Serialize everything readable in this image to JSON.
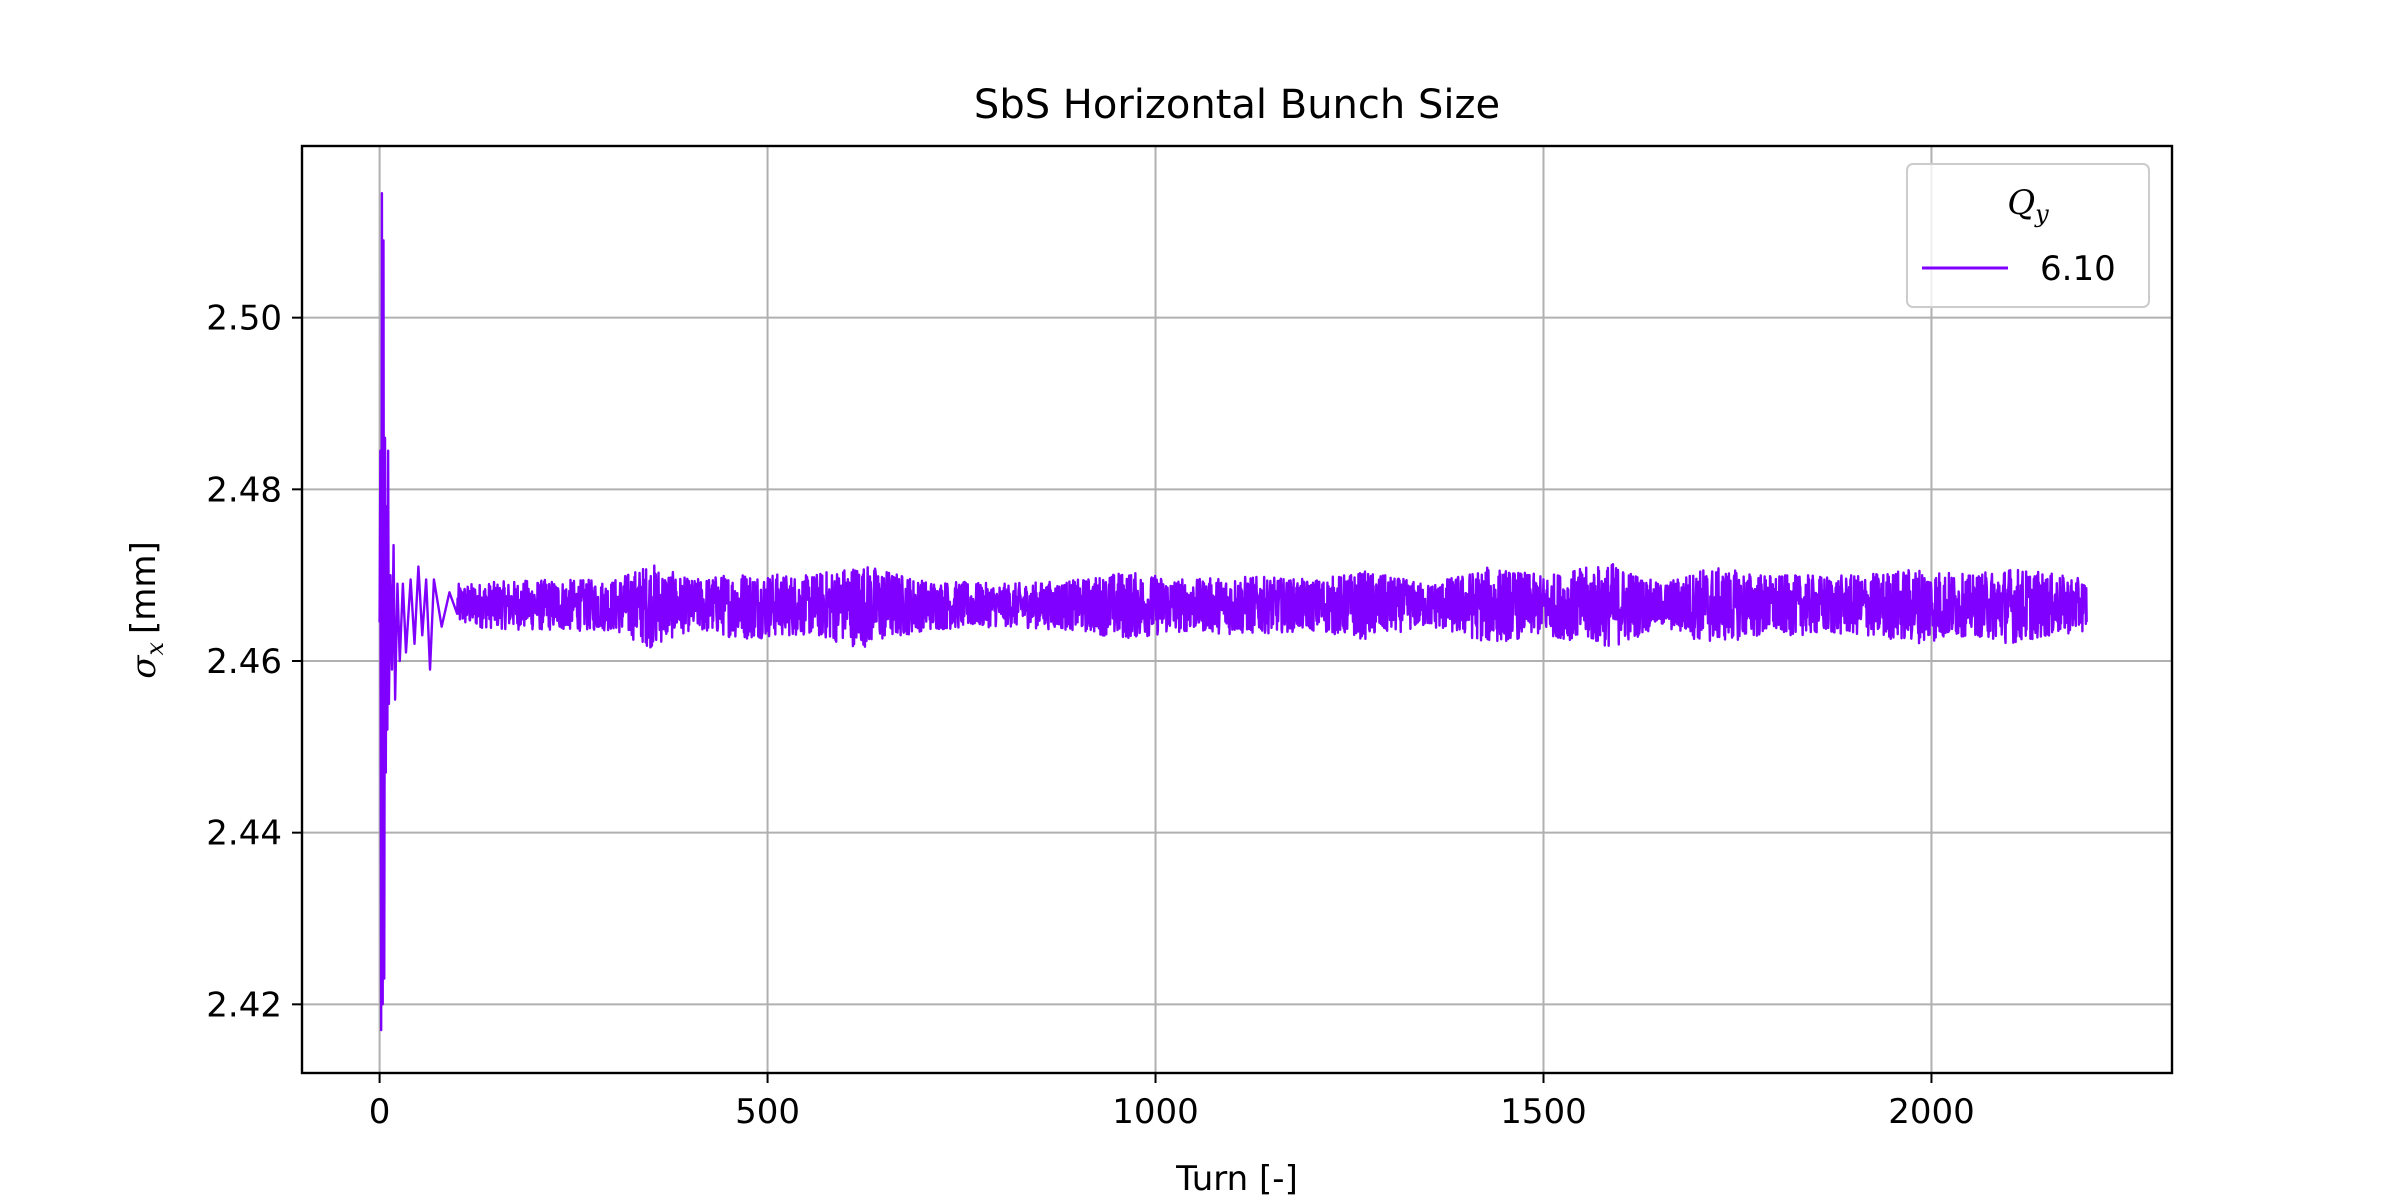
{
  "chart_data": {
    "type": "line",
    "title": "SbS Horizontal Bunch Size",
    "xlabel": "Turn [-]",
    "ylabel": "σx [mm]",
    "ylabel_symbol": "σ",
    "ylabel_subscript": "x",
    "ylabel_unit": "[mm]",
    "xlim": [
      -100,
      2310
    ],
    "ylim": [
      2.412,
      2.52
    ],
    "xticks": [
      0,
      500,
      1000,
      1500,
      2000
    ],
    "xtick_labels": [
      "0",
      "500",
      "1000",
      "1500",
      "2000"
    ],
    "yticks": [
      2.42,
      2.44,
      2.46,
      2.48,
      2.5
    ],
    "ytick_labels": [
      "2.42",
      "2.44",
      "2.46",
      "2.48",
      "2.50"
    ],
    "grid": true,
    "legend": {
      "title": "Qy",
      "title_symbol": "Q",
      "title_subscript": "y",
      "placement": "top-right",
      "entries": [
        "6.10"
      ]
    },
    "series": [
      {
        "name": "6.10",
        "color": "#8000ff",
        "x_range": [
          0,
          2200
        ],
        "initial_transient": [
          [
            0,
            2.4645
          ],
          [
            1,
            2.4845
          ],
          [
            2,
            2.417
          ],
          [
            3,
            2.5145
          ],
          [
            4,
            2.42
          ],
          [
            5,
            2.509
          ],
          [
            6,
            2.423
          ],
          [
            7,
            2.486
          ],
          [
            8,
            2.447
          ],
          [
            9,
            2.478
          ],
          [
            10,
            2.452
          ],
          [
            11,
            2.4845
          ],
          [
            12,
            2.455
          ],
          [
            14,
            2.47
          ],
          [
            16,
            2.459
          ],
          [
            18,
            2.4735
          ],
          [
            20,
            2.4555
          ],
          [
            23,
            2.469
          ],
          [
            26,
            2.46
          ],
          [
            30,
            2.469
          ],
          [
            34,
            2.461
          ],
          [
            40,
            2.4695
          ],
          [
            45,
            2.462
          ],
          [
            50,
            2.471
          ],
          [
            55,
            2.463
          ],
          [
            60,
            2.4695
          ],
          [
            65,
            2.459
          ],
          [
            70,
            2.4695
          ],
          [
            80,
            2.464
          ],
          [
            90,
            2.468
          ],
          [
            100,
            2.4655
          ]
        ],
        "steady_mean": 2.4665,
        "envelope_halfwidth": [
          [
            100,
            0.0025
          ],
          [
            200,
            0.003
          ],
          [
            300,
            0.003
          ],
          [
            350,
            0.005
          ],
          [
            400,
            0.003
          ],
          [
            470,
            0.004
          ],
          [
            550,
            0.0035
          ],
          [
            620,
            0.005
          ],
          [
            700,
            0.003
          ],
          [
            800,
            0.0025
          ],
          [
            900,
            0.003
          ],
          [
            960,
            0.004
          ],
          [
            1050,
            0.003
          ],
          [
            1100,
            0.0035
          ],
          [
            1200,
            0.003
          ],
          [
            1270,
            0.004
          ],
          [
            1350,
            0.0025
          ],
          [
            1430,
            0.0045
          ],
          [
            1500,
            0.0035
          ],
          [
            1590,
            0.005
          ],
          [
            1650,
            0.0025
          ],
          [
            1710,
            0.0045
          ],
          [
            1800,
            0.0035
          ],
          [
            1900,
            0.0035
          ],
          [
            1990,
            0.0045
          ],
          [
            2050,
            0.0035
          ],
          [
            2100,
            0.0045
          ],
          [
            2200,
            0.003
          ]
        ]
      }
    ]
  }
}
